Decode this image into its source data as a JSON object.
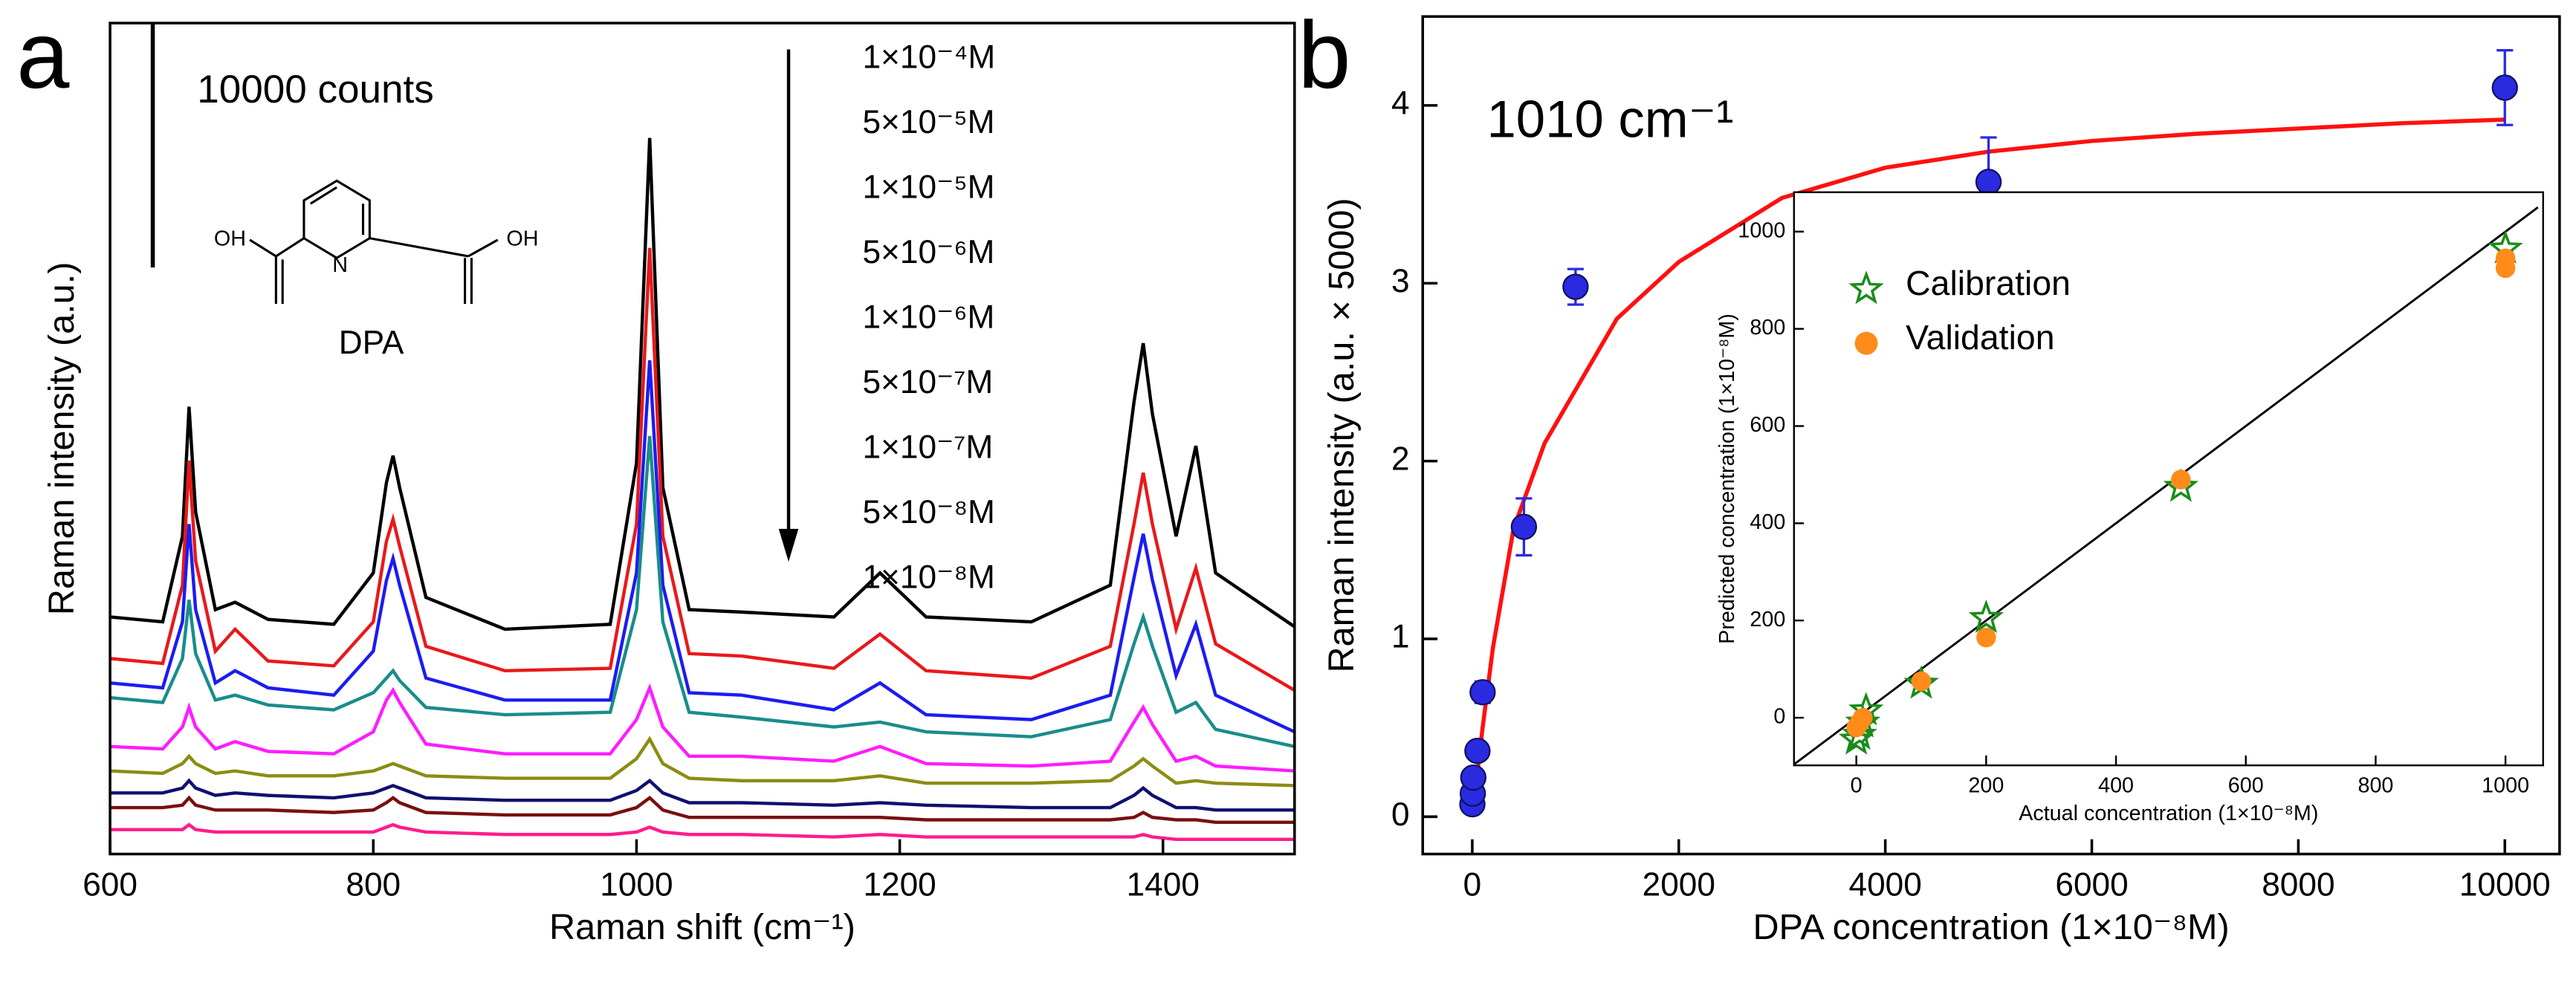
{
  "chart_data": [
    {
      "type": "line",
      "panel_label": "a",
      "xlabel": "Raman shift (cm⁻¹)",
      "ylabel": "Raman intensity (a.u.)",
      "scale_bar": {
        "value": 10000,
        "label": "10000 counts"
      },
      "molecule": {
        "name": "DPA",
        "atoms": [
          "OH",
          "N",
          "OH"
        ]
      },
      "xlim": [
        600,
        1500
      ],
      "ylim": [
        0,
        34000
      ],
      "xticks": [
        600,
        800,
        1000,
        1200,
        1400
      ],
      "x": [
        600,
        640,
        655,
        660,
        665,
        680,
        695,
        720,
        770,
        800,
        810,
        815,
        820,
        840,
        900,
        980,
        1000,
        1010,
        1020,
        1040,
        1080,
        1150,
        1185,
        1220,
        1300,
        1360,
        1378,
        1385,
        1392,
        1410,
        1425,
        1440,
        1500
      ],
      "series": [
        {
          "name": "1×10⁻⁴M",
          "color": "#000000",
          "values": [
            9700,
            9500,
            13000,
            18300,
            14000,
            10000,
            10300,
            9600,
            9400,
            11500,
            15200,
            16300,
            15000,
            10500,
            9200,
            9400,
            16000,
            29300,
            15000,
            10000,
            9900,
            9700,
            11500,
            9700,
            9500,
            11000,
            18500,
            20900,
            18000,
            13000,
            16700,
            11500,
            9300
          ]
        },
        {
          "name": "5×10⁻⁵M",
          "color": "#e8191b",
          "values": [
            8000,
            7800,
            11000,
            16100,
            12000,
            8300,
            9200,
            7900,
            7700,
            9500,
            12800,
            13700,
            12600,
            8500,
            7500,
            7600,
            13500,
            24800,
            13000,
            8200,
            8100,
            7600,
            9000,
            7500,
            7200,
            8500,
            13500,
            15600,
            13500,
            9200,
            11700,
            8600,
            6700
          ]
        },
        {
          "name": "1×10⁻⁵M",
          "color": "#1c1cf0",
          "values": [
            7000,
            6800,
            9500,
            13500,
            10000,
            7000,
            7500,
            6800,
            6500,
            8300,
            11200,
            12100,
            11000,
            7200,
            6300,
            6300,
            11500,
            20200,
            11000,
            6600,
            6500,
            5900,
            7000,
            5700,
            5500,
            6500,
            11300,
            13100,
            11200,
            7300,
            9400,
            6500,
            5000
          ]
        },
        {
          "name": "5×10⁻⁶M",
          "color": "#1a8c8c",
          "values": [
            6400,
            6200,
            8000,
            10400,
            8200,
            6300,
            6500,
            6100,
            5900,
            6600,
            7200,
            7500,
            7100,
            6000,
            5700,
            5800,
            10000,
            17100,
            9500,
            5800,
            5600,
            5200,
            5400,
            5000,
            4800,
            5500,
            8600,
            9700,
            8500,
            5800,
            6200,
            5100,
            4400
          ]
        },
        {
          "name": "1×10⁻⁶M",
          "color": "#ff1cff",
          "values": [
            4400,
            4300,
            5200,
            6000,
            5200,
            4300,
            4600,
            4200,
            4100,
            5000,
            6300,
            6700,
            6200,
            4500,
            4100,
            4100,
            5500,
            6800,
            5200,
            4000,
            4000,
            3800,
            4400,
            3700,
            3600,
            3800,
            5400,
            6000,
            5300,
            3800,
            4000,
            3600,
            3400
          ]
        },
        {
          "name": "5×10⁻⁷M",
          "color": "#8c8c14",
          "values": [
            3400,
            3300,
            3700,
            4000,
            3700,
            3300,
            3400,
            3200,
            3200,
            3400,
            3600,
            3700,
            3600,
            3200,
            3100,
            3100,
            3900,
            4700,
            3700,
            3100,
            3000,
            3000,
            3200,
            2900,
            2900,
            3000,
            3600,
            3900,
            3600,
            2900,
            3000,
            2900,
            2800
          ]
        },
        {
          "name": "1×10⁻⁷M",
          "color": "#101070",
          "values": [
            2500,
            2500,
            2700,
            3000,
            2700,
            2400,
            2500,
            2400,
            2300,
            2500,
            2700,
            2800,
            2700,
            2300,
            2200,
            2200,
            2600,
            3000,
            2500,
            2100,
            2100,
            2000,
            2100,
            2000,
            1900,
            1900,
            2400,
            2700,
            2400,
            1900,
            1900,
            1800,
            1800
          ]
        },
        {
          "name": "5×10⁻⁸M",
          "color": "#7a0f0f",
          "values": [
            1900,
            1900,
            2000,
            2300,
            2000,
            1800,
            1800,
            1800,
            1700,
            1800,
            2100,
            2300,
            2100,
            1700,
            1600,
            1600,
            1900,
            2300,
            1800,
            1500,
            1500,
            1500,
            1500,
            1400,
            1400,
            1400,
            1500,
            1700,
            1500,
            1400,
            1400,
            1300,
            1300
          ]
        },
        {
          "name": "1×10⁻⁸M",
          "color": "#ff1c8c",
          "values": [
            1000,
            1000,
            1000,
            1200,
            1000,
            900,
            900,
            900,
            900,
            900,
            1100,
            1200,
            1100,
            900,
            800,
            800,
            900,
            1100,
            900,
            800,
            800,
            700,
            800,
            700,
            700,
            700,
            700,
            800,
            700,
            600,
            600,
            600,
            600
          ]
        }
      ]
    },
    {
      "type": "scatter",
      "panel_label": "b",
      "annotation": "1010 cm⁻¹",
      "xlabel": "DPA concentration (1×10⁻⁸M)",
      "ylabel": "Raman intensity (a.u. × 5000)",
      "xlim": [
        -480,
        10530
      ],
      "ylim": [
        -0.21,
        4.5
      ],
      "xticks": [
        0,
        2000,
        4000,
        6000,
        8000,
        10000
      ],
      "yticks": [
        0,
        1,
        2,
        3,
        4
      ],
      "x": [
        1,
        5,
        10,
        50,
        100,
        500,
        1000,
        5000,
        10000
      ],
      "values": [
        0.07,
        0.13,
        0.22,
        0.37,
        0.7,
        1.63,
        2.98,
        3.57,
        4.1
      ],
      "errors": [
        0.03,
        0.03,
        0.03,
        0.04,
        0.06,
        0.16,
        0.1,
        0.25,
        0.21
      ],
      "color": "#2a2ae0",
      "fit": {
        "color": "#ff1010",
        "x": [
          0,
          100,
          200,
          400,
          700,
          1000,
          1400,
          2000,
          3000,
          4000,
          5000,
          6000,
          7000,
          8000,
          9000,
          10000
        ],
        "y": [
          0,
          0.5,
          0.95,
          1.62,
          2.1,
          2.4,
          2.8,
          3.12,
          3.48,
          3.65,
          3.74,
          3.8,
          3.84,
          3.87,
          3.9,
          3.92
        ]
      }
    },
    {
      "type": "scatter",
      "xlabel": "Actual concentration (1×10⁻⁸M)",
      "ylabel": "Predicted concentration (1×10⁻⁸M)",
      "xlim": [
        -96,
        1058
      ],
      "ylim": [
        -98,
        1081
      ],
      "xticks": [
        0,
        200,
        400,
        600,
        800,
        1000
      ],
      "yticks": [
        0,
        200,
        400,
        600,
        800,
        1000
      ],
      "reference_line": {
        "color": "#000000",
        "x": [
          -96,
          1050
        ],
        "y": [
          -96,
          1050
        ]
      },
      "series": [
        {
          "name": "Calibration",
          "marker": "star",
          "color": "#1a8c1a",
          "x": [
            0,
            5,
            10,
            15,
            100,
            200,
            500,
            1000
          ],
          "values": [
            -45,
            -35,
            -10,
            15,
            70,
            205,
            475,
            965
          ]
        },
        {
          "name": "Validation",
          "marker": "circle",
          "color": "#ff8c1a",
          "x": [
            0,
            5,
            10,
            100,
            200,
            500,
            1000,
            1000
          ],
          "values": [
            -20,
            -10,
            0,
            75,
            165,
            490,
            945,
            925
          ]
        }
      ]
    }
  ]
}
